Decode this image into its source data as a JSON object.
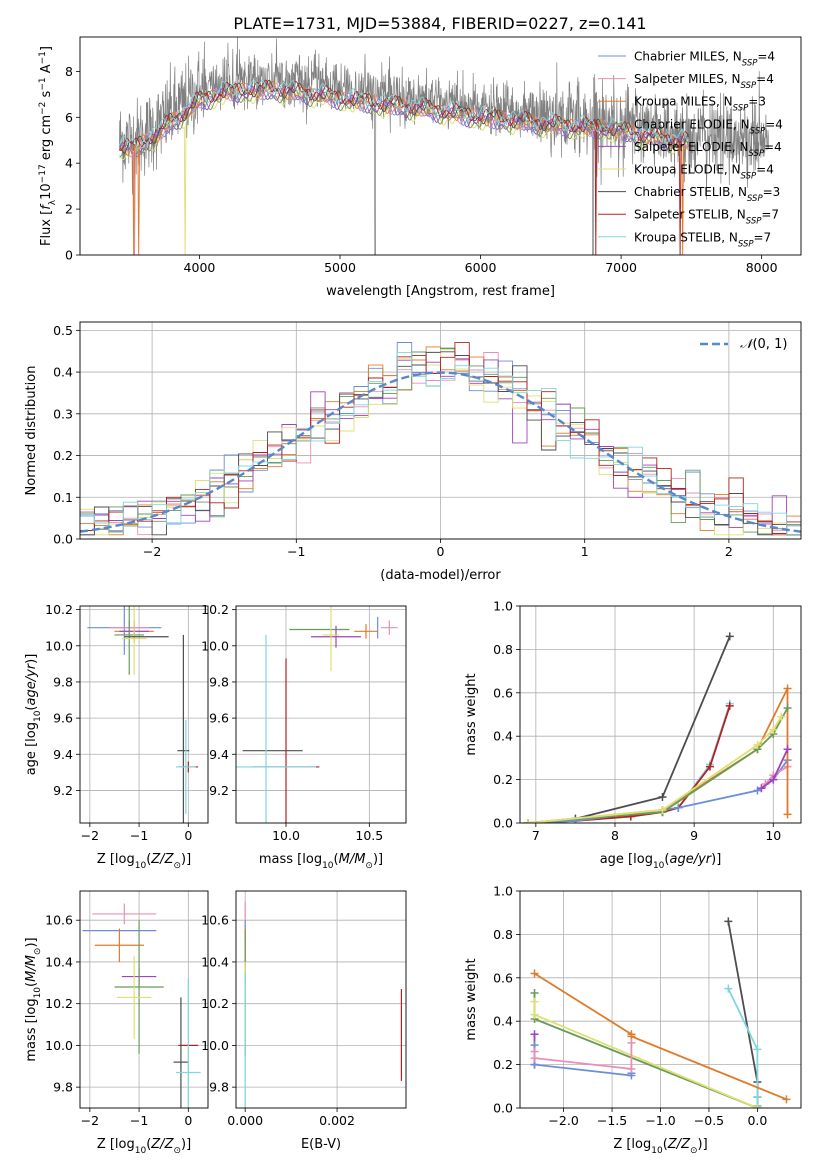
{
  "figure": {
    "title": "PLATE=1731, MJD=53884, FIBERID=0227, z=0.141"
  },
  "colors": {
    "Chabrier MILES": "#6a8fd8",
    "Salpeter MILES": "#e98fb6",
    "Kroupa MILES": "#e07b2a",
    "Chabrier ELODIE": "#6a9a5a",
    "Salpeter ELODIE": "#a043c0",
    "Kroupa ELODIE": "#dfe070",
    "Chabrier STELIB": "#4d4d4d",
    "Salpeter STELIB": "#b22222",
    "Kroupa STELIB": "#7fd6dc",
    "data": "#808080",
    "normal": "#5588cc"
  },
  "chart_data": [
    {
      "id": "spectrum",
      "type": "line",
      "xlabel": "wavelength [Angstrom, rest frame]",
      "ylabel": "Flux [f_λ 10^-17 erg cm^-2 s^-1 A^-1]",
      "xlim": [
        3150,
        8280
      ],
      "ylim": [
        0,
        9.5
      ],
      "xticks": [
        4000,
        5000,
        6000,
        7000,
        8000
      ],
      "yticks": [
        0,
        2,
        4,
        6,
        8
      ],
      "grid": false,
      "legend_position": "top-right",
      "legend": [
        {
          "model": "Chabrier MILES",
          "n": "4"
        },
        {
          "model": "Salpeter MILES",
          "n": "4"
        },
        {
          "model": "Kroupa MILES",
          "n": "3"
        },
        {
          "model": "Chabrier ELODIE",
          "n": "4"
        },
        {
          "model": "Salpeter ELODIE",
          "n": "4"
        },
        {
          "model": "Kroupa ELODIE",
          "n": "4"
        },
        {
          "model": "Chabrier STELIB",
          "n": "3"
        },
        {
          "model": "Salpeter STELIB",
          "n": "7"
        },
        {
          "model": "Kroupa STELIB",
          "n": "7"
        }
      ],
      "continuum": [
        [
          3430,
          5.0
        ],
        [
          3550,
          5.0
        ],
        [
          3700,
          5.6
        ],
        [
          3800,
          6.2
        ],
        [
          3900,
          6.6
        ],
        [
          4000,
          7.2
        ],
        [
          4200,
          7.6
        ],
        [
          4500,
          7.7
        ],
        [
          4800,
          7.5
        ],
        [
          5000,
          7.3
        ],
        [
          5300,
          7.0
        ],
        [
          5600,
          6.8
        ],
        [
          6000,
          6.4
        ],
        [
          6300,
          6.2
        ],
        [
          6600,
          6.0
        ],
        [
          6900,
          5.9
        ],
        [
          7200,
          5.5
        ],
        [
          7500,
          5.2
        ],
        [
          7800,
          5.1
        ],
        [
          8050,
          5.0
        ]
      ],
      "data_range": [
        3430,
        8050
      ],
      "model_range": [
        3430,
        7480
      ],
      "data_drops": [
        [
          5250,
          0
        ],
        [
          6800,
          0
        ]
      ],
      "model_drops": [
        {
          "model": "Kroupa MILES",
          "x": [
            3530,
            3570,
            7440
          ]
        },
        {
          "model": "Salpeter MILES",
          "x": [
            3540
          ]
        },
        {
          "model": "Kroupa ELODIE",
          "x": [
            3900
          ]
        },
        {
          "model": "Salpeter STELIB",
          "x": [
            6820,
            7420
          ]
        }
      ]
    },
    {
      "id": "residuals",
      "type": "line",
      "xlabel": "(data-model)/error",
      "ylabel": "Normed distribution",
      "xlim": [
        -2.5,
        2.5
      ],
      "ylim": [
        0,
        0.52
      ],
      "xticks": [
        -2,
        -1,
        0,
        1,
        2
      ],
      "yticks": [
        0.0,
        0.1,
        0.2,
        0.3,
        0.4,
        0.5
      ],
      "grid": true,
      "legend_position": "top-right",
      "legend": [
        "N(0,1)"
      ]
    },
    {
      "id": "age_vs_Z",
      "type": "scatter",
      "xlabel": "Z [log10(Z/Z_sun)]",
      "ylabel": "age [log10(age/yr)]",
      "xlim": [
        -2.2,
        0.4
      ],
      "ylim": [
        9.02,
        10.22
      ],
      "xticks": [
        -2,
        -1,
        0
      ],
      "yticks": [
        9.2,
        9.4,
        9.6,
        9.8,
        10.0,
        10.2
      ],
      "grid": true,
      "points": [
        {
          "model": "Chabrier MILES",
          "x": -1.3,
          "xerr": 0.75,
          "y": 10.1,
          "yerr": 0.15
        },
        {
          "model": "Salpeter MILES",
          "x": -1.2,
          "xerr": 0.4,
          "y": 10.1,
          "yerr": 0.04
        },
        {
          "model": "Kroupa MILES",
          "x": -1.1,
          "xerr": 0.4,
          "y": 10.08,
          "yerr": 0.04
        },
        {
          "model": "Chabrier ELODIE",
          "x": -1.2,
          "xerr": 0.3,
          "y": 10.06,
          "yerr": 0.22
        },
        {
          "model": "Salpeter ELODIE",
          "x": -1.1,
          "xerr": 0.3,
          "y": 10.08,
          "yerr": 0.06
        },
        {
          "model": "Kroupa ELODIE",
          "x": -1.1,
          "xerr": 0.25,
          "y": 10.04,
          "yerr": 0.2
        },
        {
          "model": "Chabrier STELIB",
          "x": -0.1,
          "xerr": 0.12,
          "y": 9.42,
          "yerr": 0.64
        },
        {
          "model": "Salpeter STELIB",
          "x": 0.0,
          "xerr": 0.2,
          "y": 9.33,
          "yerr": 0.03
        },
        {
          "model": "Kroupa STELIB",
          "x": -0.05,
          "xerr": 0.2,
          "y": 9.33,
          "yerr": 0.26
        },
        {
          "model": "Chabrier STELIB",
          "x": -0.85,
          "xerr": 0.45,
          "y": 10.05,
          "yerr": 0.0
        }
      ]
    },
    {
      "id": "age_vs_mass",
      "type": "scatter",
      "xlabel": "mass [log10(M/M_sun)]",
      "ylabel": "",
      "xlim": [
        9.7,
        10.72
      ],
      "ylim": [
        9.02,
        10.22
      ],
      "xticks": [
        10.0,
        10.5
      ],
      "yticks": [
        9.2,
        9.4,
        9.6,
        9.8,
        10.0,
        10.2
      ],
      "grid": true,
      "points": [
        {
          "model": "Chabrier MILES",
          "x": 10.55,
          "xerr": 0.0,
          "y": 10.1,
          "yerr": 0.06
        },
        {
          "model": "Salpeter MILES",
          "x": 10.62,
          "xerr": 0.05,
          "y": 10.1,
          "yerr": 0.04
        },
        {
          "model": "Kroupa MILES",
          "x": 10.48,
          "xerr": 0.07,
          "y": 10.08,
          "yerr": 0.04
        },
        {
          "model": "Chabrier ELODIE",
          "x": 10.2,
          "xerr": 0.18,
          "y": 10.09,
          "yerr": 0.0
        },
        {
          "model": "Salpeter ELODIE",
          "x": 10.3,
          "xerr": 0.15,
          "y": 10.05,
          "yerr": 0.06
        },
        {
          "model": "Kroupa ELODIE",
          "x": 10.27,
          "xerr": 0.05,
          "y": 10.06,
          "yerr": 0.2
        },
        {
          "model": "Chabrier STELIB",
          "x": 9.92,
          "xerr": 0.18,
          "y": 9.42,
          "yerr": 0.0
        },
        {
          "model": "Salpeter STELIB",
          "x": 10.0,
          "xerr": 0.2,
          "y": 9.33,
          "yerr": 0.6
        },
        {
          "model": "Kroupa STELIB",
          "x": 9.88,
          "xerr": 0.3,
          "y": 9.33,
          "yerr": 0.73
        }
      ]
    },
    {
      "id": "mass_weight_vs_age",
      "type": "line",
      "xlabel": "age [log10(age/yr)]",
      "ylabel": "mass weight",
      "xlim": [
        6.8,
        10.35
      ],
      "ylim": [
        0.0,
        1.0
      ],
      "xticks": [
        7,
        8,
        9,
        10
      ],
      "yticks": [
        0.0,
        0.2,
        0.4,
        0.6,
        0.8,
        1.0
      ],
      "grid": true,
      "series": [
        {
          "model": "Chabrier STELIB",
          "x": [
            6.9,
            7.5,
            8.6,
            9.45
          ],
          "y": [
            0.0,
            0.02,
            0.12,
            0.86
          ]
        },
        {
          "model": "Kroupa STELIB",
          "x": [
            6.9,
            7.5,
            8.2,
            8.6,
            8.8,
            9.2,
            9.45
          ],
          "y": [
            0.0,
            0.01,
            0.03,
            0.05,
            0.07,
            0.27,
            0.55
          ]
        },
        {
          "model": "Salpeter STELIB",
          "x": [
            6.9,
            7.5,
            8.2,
            8.6,
            8.8,
            9.2,
            9.45
          ],
          "y": [
            0.0,
            0.01,
            0.03,
            0.05,
            0.07,
            0.26,
            0.54
          ]
        },
        {
          "model": "Chabrier MILES",
          "x": [
            6.9,
            7.5,
            8.6,
            8.8,
            9.8,
            10.0,
            10.18
          ],
          "y": [
            0.0,
            0.01,
            0.06,
            0.07,
            0.15,
            0.2,
            0.29
          ]
        },
        {
          "model": "Salpeter MILES",
          "x": [
            9.9,
            10.0,
            10.18
          ],
          "y": [
            0.18,
            0.22,
            0.26
          ]
        },
        {
          "model": "Kroupa MILES",
          "x": [
            6.9,
            8.6,
            9.8,
            10.18,
            10.18
          ],
          "y": [
            0.0,
            0.06,
            0.34,
            0.62,
            0.04
          ]
        },
        {
          "model": "Chabrier ELODIE",
          "x": [
            6.9,
            8.6,
            9.8,
            10.0,
            10.18
          ],
          "y": [
            0.0,
            0.05,
            0.34,
            0.41,
            0.53
          ]
        },
        {
          "model": "Kroupa ELODIE",
          "x": [
            6.9,
            8.6,
            9.8,
            10.0,
            10.1
          ],
          "y": [
            0.0,
            0.06,
            0.36,
            0.43,
            0.49
          ]
        },
        {
          "model": "Salpeter ELODIE",
          "x": [
            9.85,
            10.0,
            10.18
          ],
          "y": [
            0.16,
            0.2,
            0.34
          ]
        }
      ]
    },
    {
      "id": "mass_vs_Z",
      "type": "scatter",
      "xlabel": "Z [log10(Z/Z_sun)]",
      "ylabel": "mass [log10(M/M_sun)]",
      "xlim": [
        -2.2,
        0.4
      ],
      "ylim": [
        9.7,
        10.74
      ],
      "xticks": [
        -2,
        -1,
        0
      ],
      "yticks": [
        9.8,
        10.0,
        10.2,
        10.4,
        10.6
      ],
      "grid": true,
      "points": [
        {
          "model": "Salpeter MILES",
          "x": -1.3,
          "xerr": 0.65,
          "y": 10.63,
          "yerr": 0.05
        },
        {
          "model": "Chabrier MILES",
          "x": -1.4,
          "xerr": 0.75,
          "y": 10.55,
          "yerr": 0.0
        },
        {
          "model": "Kroupa MILES",
          "x": -1.4,
          "xerr": 0.5,
          "y": 10.48,
          "yerr": 0.08
        },
        {
          "model": "Salpeter ELODIE",
          "x": -1.0,
          "xerr": 0.35,
          "y": 10.33,
          "yerr": 0.04
        },
        {
          "model": "Chabrier ELODIE",
          "x": -1.0,
          "xerr": 0.5,
          "y": 10.28,
          "yerr": 0.32
        },
        {
          "model": "Kroupa ELODIE",
          "x": -1.1,
          "xerr": 0.35,
          "y": 10.23,
          "yerr": 0.2
        },
        {
          "model": "Chabrier STELIB",
          "x": -0.15,
          "xerr": 0.15,
          "y": 9.92,
          "yerr": 0.31
        },
        {
          "model": "Salpeter STELIB",
          "x": 0.0,
          "xerr": 0.2,
          "y": 10.0,
          "yerr": 0.0
        },
        {
          "model": "Kroupa STELIB",
          "x": 0.0,
          "xerr": 0.25,
          "y": 9.87,
          "yerr": 0.45
        }
      ]
    },
    {
      "id": "mass_vs_ebv",
      "type": "scatter",
      "xlabel": "E(B-V)",
      "ylabel": "",
      "xlim": [
        -0.0002,
        0.0035
      ],
      "ylim": [
        9.7,
        10.74
      ],
      "xticks": [
        0.0,
        0.002
      ],
      "yticks": [
        9.8,
        10.0,
        10.2,
        10.4,
        10.6
      ],
      "grid": true,
      "points": [
        {
          "model": "Salpeter MILES",
          "x": 0.0,
          "y": 10.6,
          "yerr": 0.09
        },
        {
          "model": "Chabrier MILES",
          "x": 0.0,
          "y": 10.55,
          "yerr": 0.05
        },
        {
          "model": "Kroupa MILES",
          "x": 0.0,
          "y": 10.48,
          "yerr": 0.08
        },
        {
          "model": "Salpeter ELODIE",
          "x": 0.0,
          "y": 10.35,
          "yerr": 0.05
        },
        {
          "model": "Chabrier ELODIE",
          "x": 0.0,
          "y": 10.25,
          "yerr": 0.3
        },
        {
          "model": "Kroupa ELODIE",
          "x": 0.0,
          "y": 10.2,
          "yerr": 0.2
        },
        {
          "model": "Kroupa STELIB",
          "x": 0.0,
          "y": 10.0,
          "yerr": 0.35
        },
        {
          "model": "Salpeter STELIB",
          "x": 0.0034,
          "y": 10.05,
          "yerr": 0.22
        }
      ]
    },
    {
      "id": "mass_weight_vs_Z",
      "type": "line",
      "xlabel": "Z [log10(Z/Z_sun)]",
      "ylabel": "mass weight",
      "xlim": [
        -2.45,
        0.45
      ],
      "ylim": [
        0.0,
        1.0
      ],
      "xticks": [
        -2.0,
        -1.5,
        -1.0,
        -0.5,
        0.0
      ],
      "yticks": [
        0.0,
        0.2,
        0.4,
        0.6,
        0.8,
        1.0
      ],
      "grid": true,
      "series": [
        {
          "model": "Chabrier STELIB",
          "x": [
            -0.3,
            0.0,
            0.0,
            0.0
          ],
          "y": [
            0.86,
            0.12,
            0.05,
            0.01
          ]
        },
        {
          "model": "Kroupa STELIB",
          "x": [
            -0.3,
            0.0,
            0.0,
            0.0
          ],
          "y": [
            0.55,
            0.27,
            0.05,
            0.01
          ]
        },
        {
          "model": "Kroupa MILES",
          "x": [
            -2.3,
            -1.3,
            -1.3,
            0.3
          ],
          "y": [
            0.62,
            0.34,
            0.33,
            0.04
          ]
        },
        {
          "model": "Chabrier ELODIE",
          "x": [
            -2.3,
            -2.3,
            0.0
          ],
          "y": [
            0.53,
            0.41,
            0.0
          ]
        },
        {
          "model": "Kroupa ELODIE",
          "x": [
            -2.3,
            -2.3,
            0.0
          ],
          "y": [
            0.49,
            0.43,
            0.0
          ]
        },
        {
          "model": "Salpeter ELODIE",
          "x": [
            -2.3,
            -2.3
          ],
          "y": [
            0.34,
            0.2
          ]
        },
        {
          "model": "Chabrier MILES",
          "x": [
            -2.3,
            -2.3,
            -1.3,
            -1.3
          ],
          "y": [
            0.29,
            0.2,
            0.15,
            0.16
          ]
        },
        {
          "model": "Salpeter MILES",
          "x": [
            -2.3,
            -2.3,
            -1.3,
            -1.3
          ],
          "y": [
            0.26,
            0.23,
            0.18,
            0.3
          ]
        }
      ]
    }
  ]
}
